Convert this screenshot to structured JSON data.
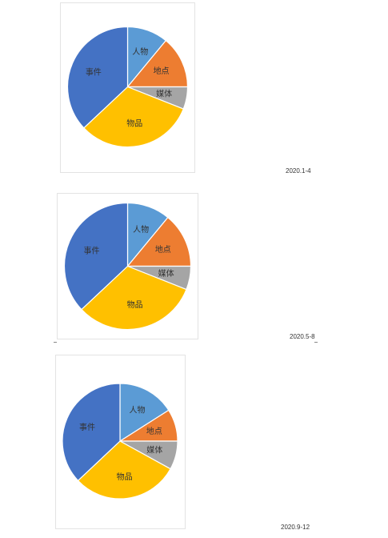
{
  "colors": {
    "人物": "#5b9bd5",
    "地点": "#ed7d31",
    "媒体": "#a5a5a5",
    "物品": "#ffc000",
    "事件": "#4472c4"
  },
  "chart_data": [
    {
      "type": "pie",
      "period": "2020.1-4",
      "slices": [
        {
          "name": "人物",
          "value": 11
        },
        {
          "name": "地点",
          "value": 14
        },
        {
          "name": "媒体",
          "value": 6
        },
        {
          "name": "物品",
          "value": 32
        },
        {
          "name": "事件",
          "value": 37
        }
      ]
    },
    {
      "type": "pie",
      "period": "2020.5-8",
      "slices": [
        {
          "name": "人物",
          "value": 11
        },
        {
          "name": "地点",
          "value": 14
        },
        {
          "name": "媒体",
          "value": 6
        },
        {
          "name": "物品",
          "value": 32
        },
        {
          "name": "事件",
          "value": 37
        }
      ]
    },
    {
      "type": "pie",
      "period": "2020.9-12",
      "slices": [
        {
          "name": "人物",
          "value": 16
        },
        {
          "name": "地点",
          "value": 9
        },
        {
          "name": "媒体",
          "value": 8
        },
        {
          "name": "物品",
          "value": 30
        },
        {
          "name": "事件",
          "value": 37
        }
      ]
    }
  ]
}
